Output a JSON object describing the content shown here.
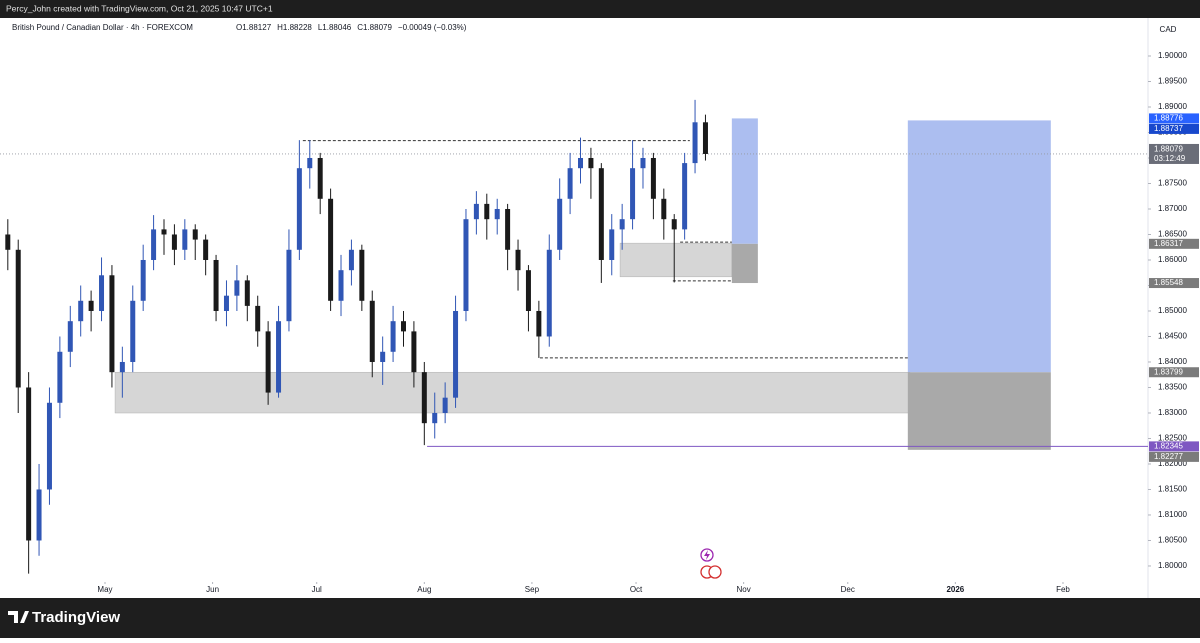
{
  "header": {
    "credit": "Percy_John created with TradingView.com, Oct 21, 2025 10:47 UTC+1",
    "symbol": "British Pound / Canadian Dollar · 4h · FOREXCOM",
    "ohlc": [
      "O1.88127",
      "H1.88228",
      "L1.88046",
      "C1.88079"
    ],
    "change": "−0.00049 (−0.03%)",
    "currency": "CAD"
  },
  "footer": {
    "brand": "TradingView"
  },
  "chart_data": {
    "type": "candlestick",
    "x": [
      -28,
      -25,
      -22,
      -19,
      -16,
      -13,
      -10,
      -7,
      -4,
      -1,
      2,
      5,
      8,
      11,
      14,
      17,
      20,
      23,
      26,
      29,
      32,
      35,
      38,
      41,
      44,
      47,
      50,
      53,
      56,
      59,
      62,
      65,
      68,
      71,
      74,
      77,
      80,
      83,
      86,
      89,
      92,
      95,
      98,
      101,
      104,
      107,
      110,
      113,
      116,
      119,
      122,
      125,
      128,
      131,
      134,
      137,
      140,
      143,
      146,
      149,
      152,
      155,
      158,
      161,
      164,
      167,
      170,
      173
    ],
    "open": [
      1.865,
      1.862,
      1.835,
      1.805,
      1.815,
      1.832,
      1.842,
      1.848,
      1.852,
      1.85,
      1.857,
      1.838,
      1.84,
      1.852,
      1.86,
      1.866,
      1.865,
      1.862,
      1.866,
      1.864,
      1.86,
      1.85,
      1.853,
      1.856,
      1.851,
      1.846,
      1.834,
      1.848,
      1.862,
      1.878,
      1.88,
      1.872,
      1.852,
      1.858,
      1.862,
      1.852,
      1.84,
      1.842,
      1.848,
      1.846,
      1.838,
      1.828,
      1.83,
      1.833,
      1.85,
      1.868,
      1.871,
      1.868,
      1.87,
      1.862,
      1.858,
      1.85,
      1.845,
      1.862,
      1.872,
      1.878,
      1.88,
      1.878,
      1.86,
      1.866,
      1.868,
      1.878,
      1.88,
      1.872,
      1.868,
      1.866,
      1.879,
      1.887
    ],
    "high": [
      1.868,
      1.864,
      1.838,
      1.82,
      1.835,
      1.845,
      1.851,
      1.855,
      1.854,
      1.8605,
      1.859,
      1.843,
      1.855,
      1.863,
      1.8688,
      1.868,
      1.867,
      1.868,
      1.867,
      1.865,
      1.861,
      1.856,
      1.859,
      1.857,
      1.853,
      1.848,
      1.851,
      1.866,
      1.8835,
      1.8835,
      1.881,
      1.874,
      1.861,
      1.864,
      1.863,
      1.854,
      1.845,
      1.851,
      1.85,
      1.848,
      1.84,
      1.834,
      1.836,
      1.853,
      1.87,
      1.8735,
      1.873,
      1.872,
      1.871,
      1.864,
      1.859,
      1.852,
      1.865,
      1.876,
      1.881,
      1.884,
      1.882,
      1.879,
      1.869,
      1.871,
      1.8835,
      1.882,
      1.881,
      1.874,
      1.869,
      1.881,
      1.8914,
      1.8885
    ],
    "low": [
      1.858,
      1.83,
      1.7985,
      1.802,
      1.812,
      1.829,
      1.839,
      1.845,
      1.846,
      1.848,
      1.835,
      1.833,
      1.838,
      1.85,
      1.858,
      1.861,
      1.859,
      1.86,
      1.86,
      1.857,
      1.848,
      1.847,
      1.85,
      1.848,
      1.843,
      1.8316,
      1.833,
      1.846,
      1.86,
      1.874,
      1.869,
      1.85,
      1.849,
      1.855,
      1.85,
      1.837,
      1.8355,
      1.84,
      1.843,
      1.835,
      1.8237,
      1.825,
      1.828,
      1.831,
      1.848,
      1.865,
      1.864,
      1.865,
      1.858,
      1.854,
      1.846,
      1.8408,
      1.843,
      1.86,
      1.869,
      1.875,
      1.872,
      1.8555,
      1.857,
      1.862,
      1.866,
      1.874,
      1.868,
      1.864,
      1.8556,
      1.864,
      1.877,
      1.8795
    ],
    "close": [
      1.862,
      1.835,
      1.805,
      1.815,
      1.832,
      1.842,
      1.848,
      1.852,
      1.85,
      1.857,
      1.838,
      1.84,
      1.852,
      1.86,
      1.866,
      1.865,
      1.862,
      1.866,
      1.864,
      1.86,
      1.85,
      1.853,
      1.856,
      1.851,
      1.846,
      1.834,
      1.848,
      1.862,
      1.878,
      1.88,
      1.872,
      1.852,
      1.858,
      1.862,
      1.852,
      1.84,
      1.842,
      1.848,
      1.846,
      1.838,
      1.828,
      1.83,
      1.833,
      1.85,
      1.868,
      1.871,
      1.868,
      1.87,
      1.862,
      1.858,
      1.85,
      1.845,
      1.862,
      1.872,
      1.878,
      1.88,
      1.878,
      1.86,
      1.866,
      1.868,
      1.878,
      1.88,
      1.872,
      1.868,
      1.866,
      1.879,
      1.887,
      1.88079
    ],
    "up_color": "#3056b5",
    "down_color": "#1a1a1a",
    "xlim": [
      -30.25,
      300.5
    ],
    "xticks": [
      {
        "value": 0,
        "label": "May"
      },
      {
        "value": 31,
        "label": "Jun"
      },
      {
        "value": 61,
        "label": "Jul"
      },
      {
        "value": 92,
        "label": "Aug"
      },
      {
        "value": 123,
        "label": "Sep"
      },
      {
        "value": 153,
        "label": "Oct"
      },
      {
        "value": 184,
        "label": "Nov"
      },
      {
        "value": 214,
        "label": "Dec"
      },
      {
        "value": 245,
        "label": "2026"
      },
      {
        "value": 276,
        "label": "Feb"
      }
    ],
    "ylim": [
      1.79725,
      1.90745
    ],
    "yticks": [
      {
        "value": 1.8,
        "label": "1.80000"
      },
      {
        "value": 1.805,
        "label": "1.80500"
      },
      {
        "value": 1.81,
        "label": "1.81000"
      },
      {
        "value": 1.815,
        "label": "1.81500"
      },
      {
        "value": 1.82,
        "label": "1.82000"
      },
      {
        "value": 1.825,
        "label": "1.82500"
      },
      {
        "value": 1.83,
        "label": "1.83000"
      },
      {
        "value": 1.835,
        "label": "1.83500"
      },
      {
        "value": 1.84,
        "label": "1.84000"
      },
      {
        "value": 1.845,
        "label": "1.84500"
      },
      {
        "value": 1.85,
        "label": "1.85000"
      },
      {
        "value": 1.855,
        "label": "1.85500"
      },
      {
        "value": 1.86,
        "label": "1.86000"
      },
      {
        "value": 1.865,
        "label": "1.86500"
      },
      {
        "value": 1.87,
        "label": "1.87000"
      },
      {
        "value": 1.875,
        "label": "1.87500"
      },
      {
        "value": 1.88,
        "label": "1.88000"
      },
      {
        "value": 1.885,
        "label": "1.88500"
      },
      {
        "value": 1.89,
        "label": "1.89000"
      },
      {
        "value": 1.895,
        "label": "1.89500"
      },
      {
        "value": 1.9,
        "label": "1.90000"
      }
    ],
    "grid": false,
    "zones": [
      {
        "x0": 2.9,
        "x1": 231.9,
        "top": 1.83799,
        "bottom": 1.83,
        "color": "#d6d6d6"
      },
      {
        "x0": 148.4,
        "x1": 180.6,
        "top": 1.8633,
        "bottom": 1.8567,
        "color": "#d6d6d6"
      }
    ],
    "levels": [
      {
        "x0": 57.0,
        "x1": 168.5,
        "price": 1.8834,
        "color": "#333333",
        "dashed": true
      },
      {
        "x0": 125.3,
        "x1": 231.3,
        "price": 1.8408,
        "color": "#333333",
        "dashed": true
      },
      {
        "x0": 165.7,
        "x1": 180.6,
        "price": 1.8635,
        "color": "#333333",
        "dashed": true
      },
      {
        "x0": 163.6,
        "x1": 180.6,
        "price": 1.8559,
        "color": "#333333",
        "dashed": true
      },
      {
        "x0": 92.8,
        "x1": 300.5,
        "price": 1.82345,
        "color": "#7e57c2",
        "dashed": false
      }
    ],
    "positions": [
      {
        "x0": 180.6,
        "x1": 188.1,
        "target": 1.88776,
        "entry": 1.86317,
        "stop": 1.85548
      },
      {
        "x0": 231.3,
        "x1": 272.5,
        "target": 1.88737,
        "entry": 1.83799,
        "stop": 1.82277
      }
    ],
    "target_color": "#a8bbef",
    "stop_color": "#a9a9a9",
    "price_line": 1.88079,
    "axis_labels": [
      {
        "value": 1.88776,
        "color": "#2962ff"
      },
      {
        "value": 1.88737,
        "color": "#1848cc"
      },
      {
        "value": 1.88079,
        "color": "#6a6d78",
        "countdown": "03:12:49"
      },
      {
        "value": 1.86317,
        "color": "#7b7b7b"
      },
      {
        "value": 1.85548,
        "color": "#7b7b7b"
      },
      {
        "value": 1.83799,
        "color": "#7b7b7b"
      },
      {
        "value": 1.82345,
        "color": "#7e57c2"
      },
      {
        "value": 1.82277,
        "color": "#7b7b7b"
      }
    ]
  }
}
